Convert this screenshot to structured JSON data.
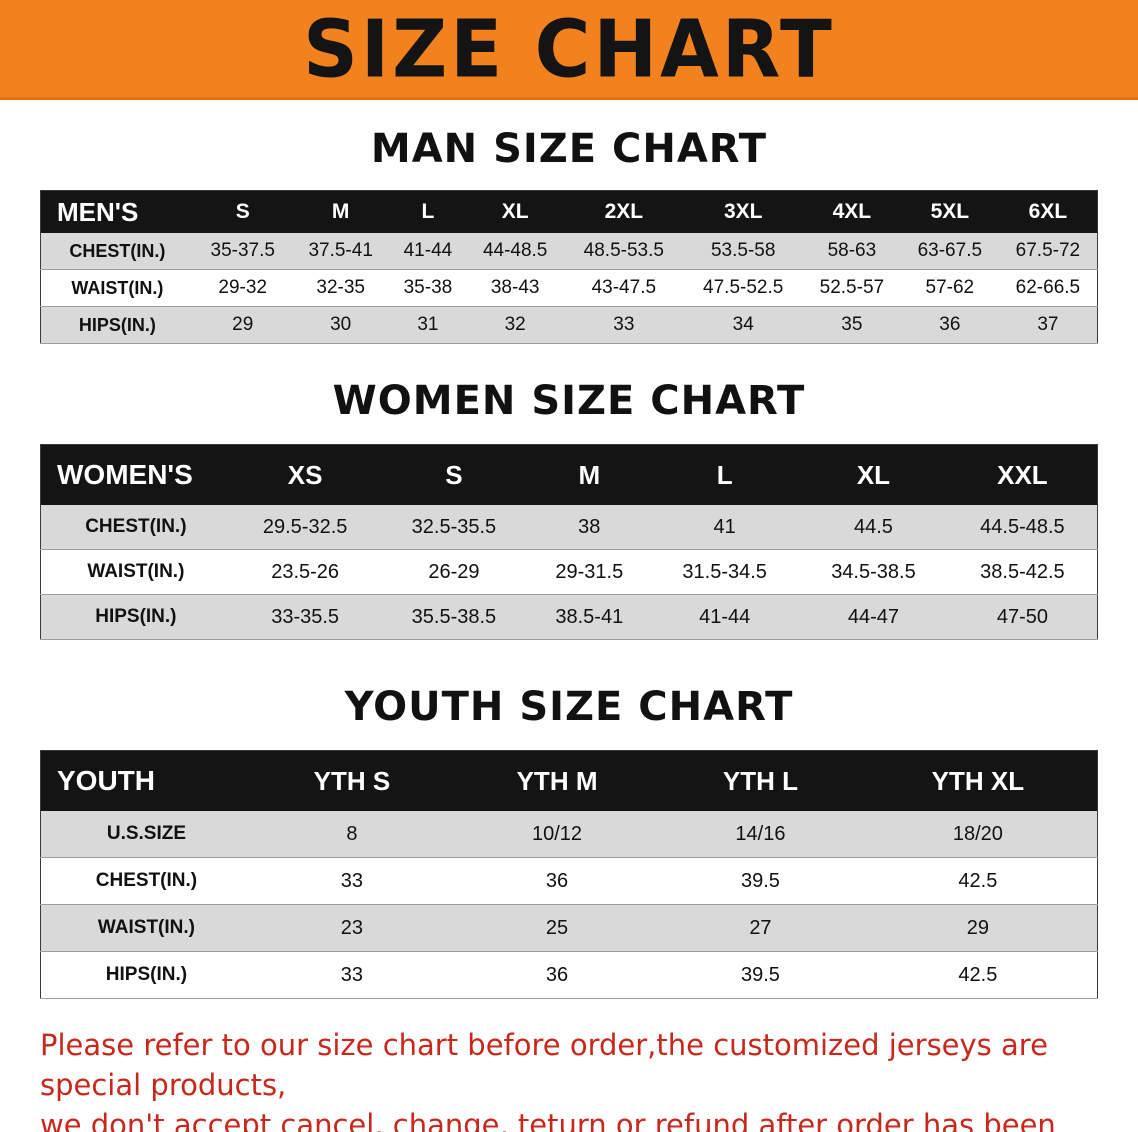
{
  "banner": {
    "title": "SIZE CHART",
    "bg_color": "#f2821d"
  },
  "sections": [
    {
      "heading": "MAN SIZE CHART",
      "table": {
        "header": [
          "MEN'S",
          "S",
          "M",
          "L",
          "XL",
          "2XL",
          "3XL",
          "4XL",
          "5XL",
          "6XL"
        ],
        "rows": [
          [
            "CHEST(IN.)",
            "35-37.5",
            "37.5-41",
            "41-44",
            "44-48.5",
            "48.5-53.5",
            "53.5-58",
            "58-63",
            "63-67.5",
            "67.5-72"
          ],
          [
            "WAIST(IN.)",
            "29-32",
            "32-35",
            "35-38",
            "38-43",
            "43-47.5",
            "47.5-52.5",
            "52.5-57",
            "57-62",
            "62-66.5"
          ],
          [
            "HIPS(IN.)",
            "29",
            "30",
            "31",
            "32",
            "33",
            "34",
            "35",
            "36",
            "37"
          ]
        ]
      }
    },
    {
      "heading": "WOMEN SIZE CHART",
      "table": {
        "header": [
          "WOMEN'S",
          "XS",
          "S",
          "M",
          "L",
          "XL",
          "XXL"
        ],
        "rows": [
          [
            "CHEST(IN.)",
            "29.5-32.5",
            "32.5-35.5",
            "38",
            "41",
            "44.5",
            "44.5-48.5"
          ],
          [
            "WAIST(IN.)",
            "23.5-26",
            "26-29",
            "29-31.5",
            "31.5-34.5",
            "34.5-38.5",
            "38.5-42.5"
          ],
          [
            "HIPS(IN.)",
            "33-35.5",
            "35.5-38.5",
            "38.5-41",
            "41-44",
            "44-47",
            "47-50"
          ]
        ]
      }
    },
    {
      "heading": "YOUTH SIZE CHART",
      "table": {
        "header": [
          "YOUTH",
          "YTH S",
          "YTH M",
          "YTH L",
          "YTH XL"
        ],
        "rows": [
          [
            "U.S.SIZE",
            "8",
            "10/12",
            "14/16",
            "18/20"
          ],
          [
            "CHEST(IN.)",
            "33",
            "36",
            "39.5",
            "42.5"
          ],
          [
            "WAIST(IN.)",
            "23",
            "25",
            "27",
            "29"
          ],
          [
            "HIPS(IN.)",
            "33",
            "36",
            "39.5",
            "42.5"
          ]
        ]
      }
    }
  ],
  "footer": {
    "lines": [
      "Please refer to our size chart before order,the customized jerseys are special products,",
      "we don't accept cancel, change, teturn or refund after order has been placed!"
    ],
    "color": "#c8281c"
  }
}
